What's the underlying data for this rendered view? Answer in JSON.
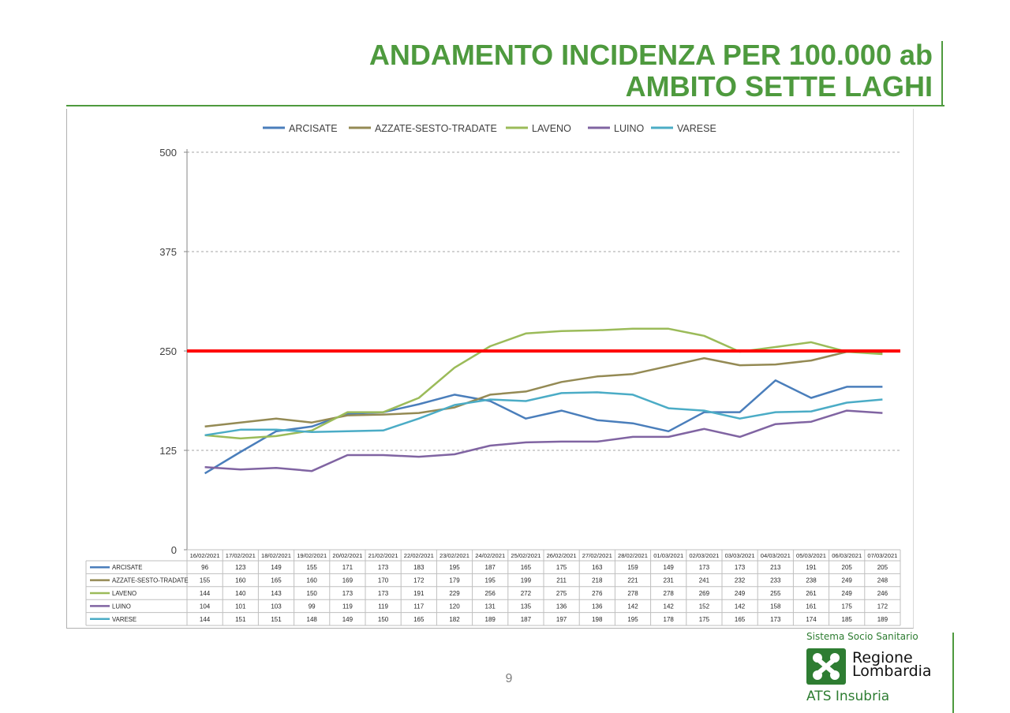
{
  "title_line1": "ANDAMENTO INCIDENZA PER 100.000 ab",
  "title_line2": "AMBITO SETTE LAGHI",
  "page_number": "9",
  "logo": {
    "top_text": "Sistema Socio Sanitario",
    "region_line1": "Regione",
    "region_line2": "Lombardia",
    "ats_text": "ATS Insubria",
    "brand_color": "#2e7d32"
  },
  "chart_data": {
    "type": "line",
    "ylim": [
      0,
      500
    ],
    "yticks": [
      0,
      125,
      250,
      375,
      500
    ],
    "grid": true,
    "legend_position": "top",
    "threshold": {
      "value": 250,
      "color": "#ff0000"
    },
    "categories": [
      "16/02/2021",
      "17/02/2021",
      "18/02/2021",
      "19/02/2021",
      "20/02/2021",
      "21/02/2021",
      "22/02/2021",
      "23/02/2021",
      "24/02/2021",
      "25/02/2021",
      "26/02/2021",
      "27/02/2021",
      "28/02/2021",
      "01/03/2021",
      "02/03/2021",
      "03/03/2021",
      "04/03/2021",
      "05/03/2021",
      "06/03/2021",
      "07/03/2021"
    ],
    "series": [
      {
        "name": "ARCISATE",
        "color": "#4a7ebb",
        "values": [
          96,
          123,
          149,
          155,
          171,
          173,
          183,
          195,
          187,
          165,
          175,
          163,
          159,
          149,
          173,
          173,
          213,
          191,
          205,
          205
        ]
      },
      {
        "name": "AZZATE-SESTO-TRADATE",
        "color": "#948a54",
        "values": [
          155,
          160,
          165,
          160,
          169,
          170,
          172,
          179,
          195,
          199,
          211,
          218,
          221,
          231,
          241,
          232,
          233,
          238,
          249,
          248
        ]
      },
      {
        "name": "LAVENO",
        "color": "#9bbb59",
        "values": [
          144,
          140,
          143,
          150,
          173,
          173,
          191,
          229,
          256,
          272,
          275,
          276,
          278,
          278,
          269,
          249,
          255,
          261,
          249,
          246
        ]
      },
      {
        "name": "LUINO",
        "color": "#8064a2",
        "values": [
          104,
          101,
          103,
          99,
          119,
          119,
          117,
          120,
          131,
          135,
          136,
          136,
          142,
          142,
          152,
          142,
          158,
          161,
          175,
          172
        ]
      },
      {
        "name": "VARESE",
        "color": "#4bacc6",
        "values": [
          144,
          151,
          151,
          148,
          149,
          150,
          165,
          182,
          189,
          187,
          197,
          198,
          195,
          178,
          175,
          165,
          173,
          174,
          185,
          189
        ]
      }
    ]
  }
}
